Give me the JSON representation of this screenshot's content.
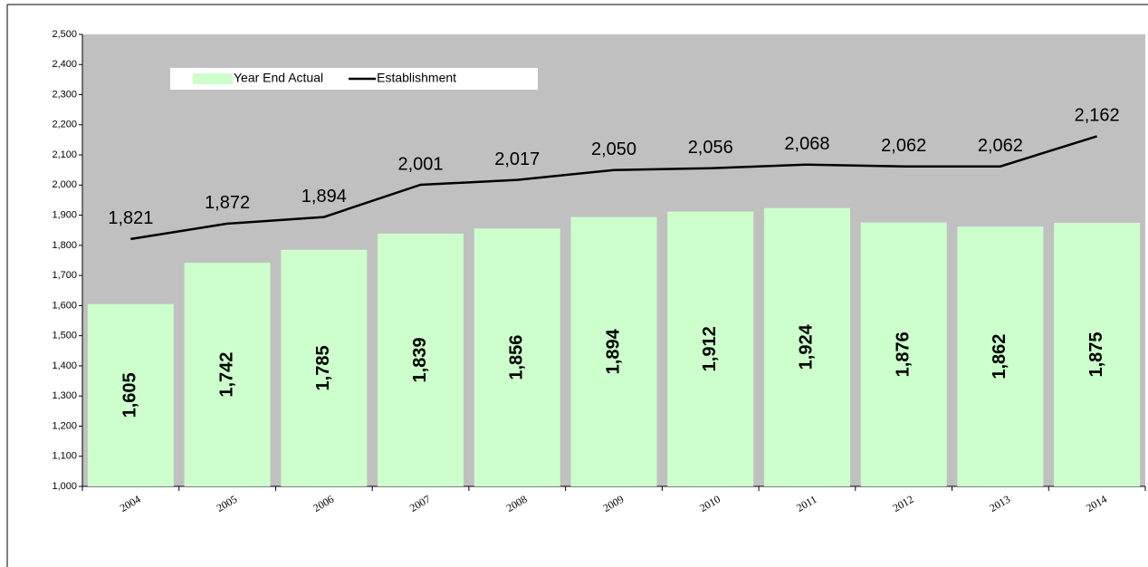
{
  "chart_data": {
    "type": "bar",
    "categories": [
      "2004",
      "2005",
      "2006",
      "2007",
      "2008",
      "2009",
      "2010",
      "2011",
      "2012",
      "2013",
      "2014"
    ],
    "series": [
      {
        "name": "Year End Actual",
        "type": "bar",
        "color": "#ccffcc",
        "values": [
          1605,
          1742,
          1785,
          1839,
          1856,
          1894,
          1912,
          1924,
          1876,
          1862,
          1875
        ],
        "value_labels": [
          "1,605",
          "1,742",
          "1,785",
          "1,839",
          "1,856",
          "1,894",
          "1,912",
          "1,924",
          "1,876",
          "1,862",
          "1,875"
        ]
      },
      {
        "name": "Establishment",
        "type": "line",
        "color": "#000000",
        "values": [
          1821,
          1872,
          1894,
          2001,
          2017,
          2050,
          2056,
          2068,
          2062,
          2062,
          2162
        ],
        "value_labels": [
          "1,821",
          "1,872",
          "1,894",
          "2,001",
          "2,017",
          "2,050",
          "2,056",
          "2,068",
          "2,062",
          "2,062",
          "2,162"
        ]
      }
    ],
    "ylim": [
      1000,
      2500
    ],
    "yticks": [
      {
        "value": 1000,
        "label": "1,000"
      },
      {
        "value": 1100,
        "label": "1,100"
      },
      {
        "value": 1200,
        "label": "1,200"
      },
      {
        "value": 1300,
        "label": "1,300"
      },
      {
        "value": 1400,
        "label": "1,400"
      },
      {
        "value": 1500,
        "label": "1,500"
      },
      {
        "value": 1600,
        "label": "1,600"
      },
      {
        "value": 1700,
        "label": "1,700"
      },
      {
        "value": 1800,
        "label": "1,800"
      },
      {
        "value": 1900,
        "label": "1,900"
      },
      {
        "value": 2000,
        "label": "2,000"
      },
      {
        "value": 2100,
        "label": "2,100"
      },
      {
        "value": 2200,
        "label": "2,200"
      },
      {
        "value": 2300,
        "label": "2,300"
      },
      {
        "value": 2400,
        "label": "2,400"
      },
      {
        "value": 2500,
        "label": "2,500"
      }
    ],
    "background": "#c0c0c0",
    "legend": "top-left"
  }
}
